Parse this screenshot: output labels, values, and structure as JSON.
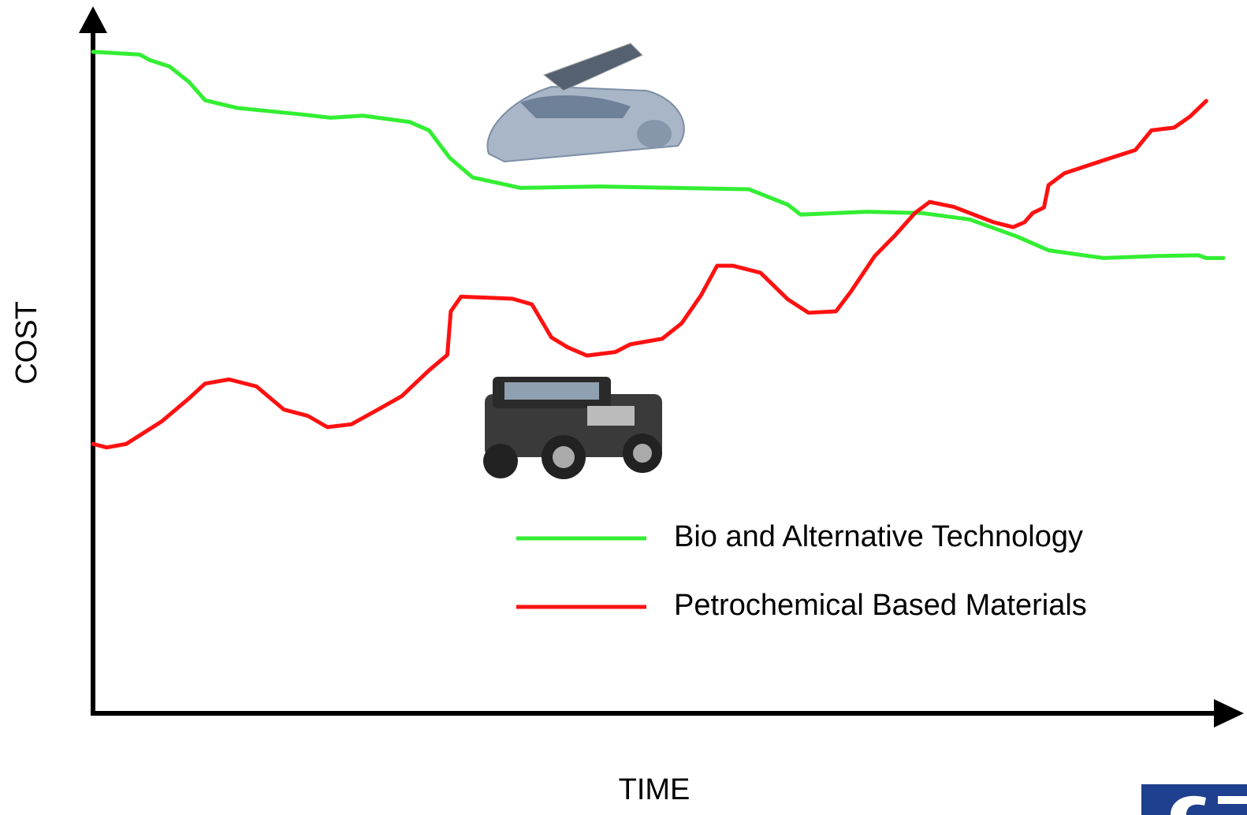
{
  "chart_data": {
    "type": "line",
    "x_label": "TIME",
    "y_label": "COST",
    "xlim": [
      0,
      100
    ],
    "ylim": [
      0,
      100
    ],
    "series": [
      {
        "name": "Bio and Alternative Technology",
        "color": "#33ee33",
        "x": [
          0,
          4.1,
          5.0,
          6.7,
          8.4,
          9.8,
          12.6,
          18.1,
          20.8,
          23.6,
          27.7,
          29.4,
          31.2,
          33.2,
          37.4,
          44.3,
          57.4,
          60.8,
          61.9,
          67.7,
          72.6,
          76.7,
          80.8,
          83.6,
          88.4,
          93.2,
          96.7,
          97.4,
          98.9
        ],
        "values": [
          94.3,
          93.9,
          93.1,
          92.2,
          90.0,
          87.4,
          86.3,
          85.4,
          84.9,
          85.2,
          84.3,
          83.1,
          79.2,
          76.4,
          74.9,
          75.1,
          74.7,
          72.5,
          71.1,
          71.5,
          71.3,
          70.4,
          68.0,
          66.0,
          64.9,
          65.2,
          65.3,
          64.9,
          64.9
        ]
      },
      {
        "name": "Petrochemical Based Materials",
        "color": "#ff1111",
        "x": [
          0,
          1.2,
          2.9,
          6.0,
          8.4,
          9.8,
          11.9,
          14.3,
          16.7,
          18.8,
          20.5,
          22.6,
          24.6,
          27.0,
          29.4,
          31.0,
          31.3,
          32.2,
          36.7,
          38.4,
          40.1,
          41.5,
          43.2,
          45.7,
          47.0,
          49.8,
          51.5,
          53.2,
          54.6,
          56.0,
          58.4,
          60.8,
          62.6,
          65.0,
          66.3,
          68.4,
          70.1,
          71.9,
          73.2,
          75.3,
          78.8,
          80.5,
          81.5,
          82.2,
          83.2,
          83.6,
          85.0,
          89.1,
          91.2,
          92.6,
          94.6,
          96.0,
          97.4
        ],
        "values": [
          38.4,
          37.9,
          38.4,
          41.6,
          44.9,
          47.0,
          47.6,
          46.6,
          43.3,
          42.4,
          40.8,
          41.2,
          43.0,
          45.2,
          48.9,
          51.1,
          57.3,
          59.4,
          59.1,
          58.3,
          53.6,
          52.2,
          51.0,
          51.5,
          52.6,
          53.4,
          55.6,
          59.6,
          63.8,
          63.8,
          62.8,
          59.0,
          57.1,
          57.3,
          60.1,
          65.2,
          68.0,
          71.3,
          72.9,
          72.2,
          70.0,
          69.3,
          70.0,
          71.3,
          72.1,
          75.3,
          77.0,
          79.2,
          80.3,
          83.1,
          83.5,
          85.1,
          87.3
        ]
      }
    ]
  }
}
